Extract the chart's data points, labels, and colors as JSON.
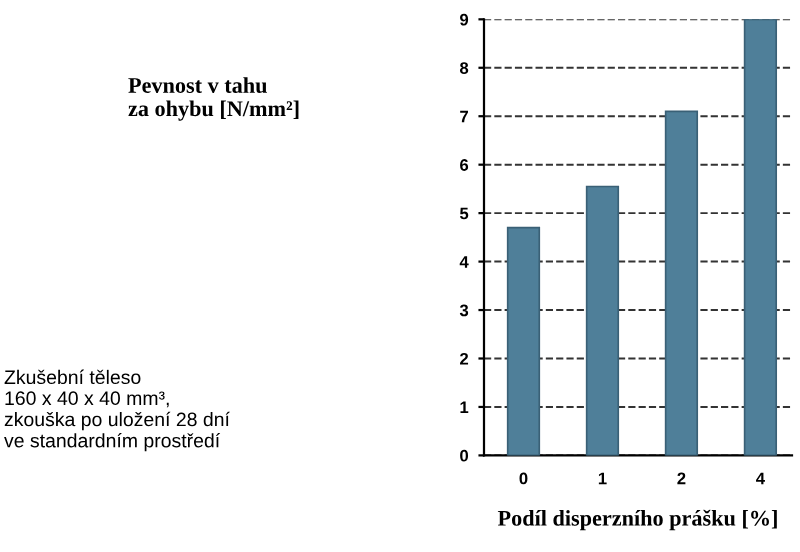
{
  "chart_data": {
    "type": "bar",
    "xlabel": "Podíl disperzního prášku [%]",
    "annotations": [
      "Pevnost v tahu\nza ohybu [N/mm²]",
      "Zkušební těleso\n160 x 40 x 40 mm³,\nzkouška po uložení 28 dní\nve standardním prostředí"
    ],
    "categories": [
      "0",
      "1",
      "2",
      "4"
    ],
    "values": [
      4.7,
      5.55,
      7.1,
      9.0
    ],
    "color": "#4f7f99",
    "ylim": [
      0,
      9
    ],
    "yticks": [
      0,
      1,
      2,
      3,
      4,
      5,
      6,
      7,
      8,
      9
    ],
    "grid": "y",
    "line_style": "dashed"
  }
}
